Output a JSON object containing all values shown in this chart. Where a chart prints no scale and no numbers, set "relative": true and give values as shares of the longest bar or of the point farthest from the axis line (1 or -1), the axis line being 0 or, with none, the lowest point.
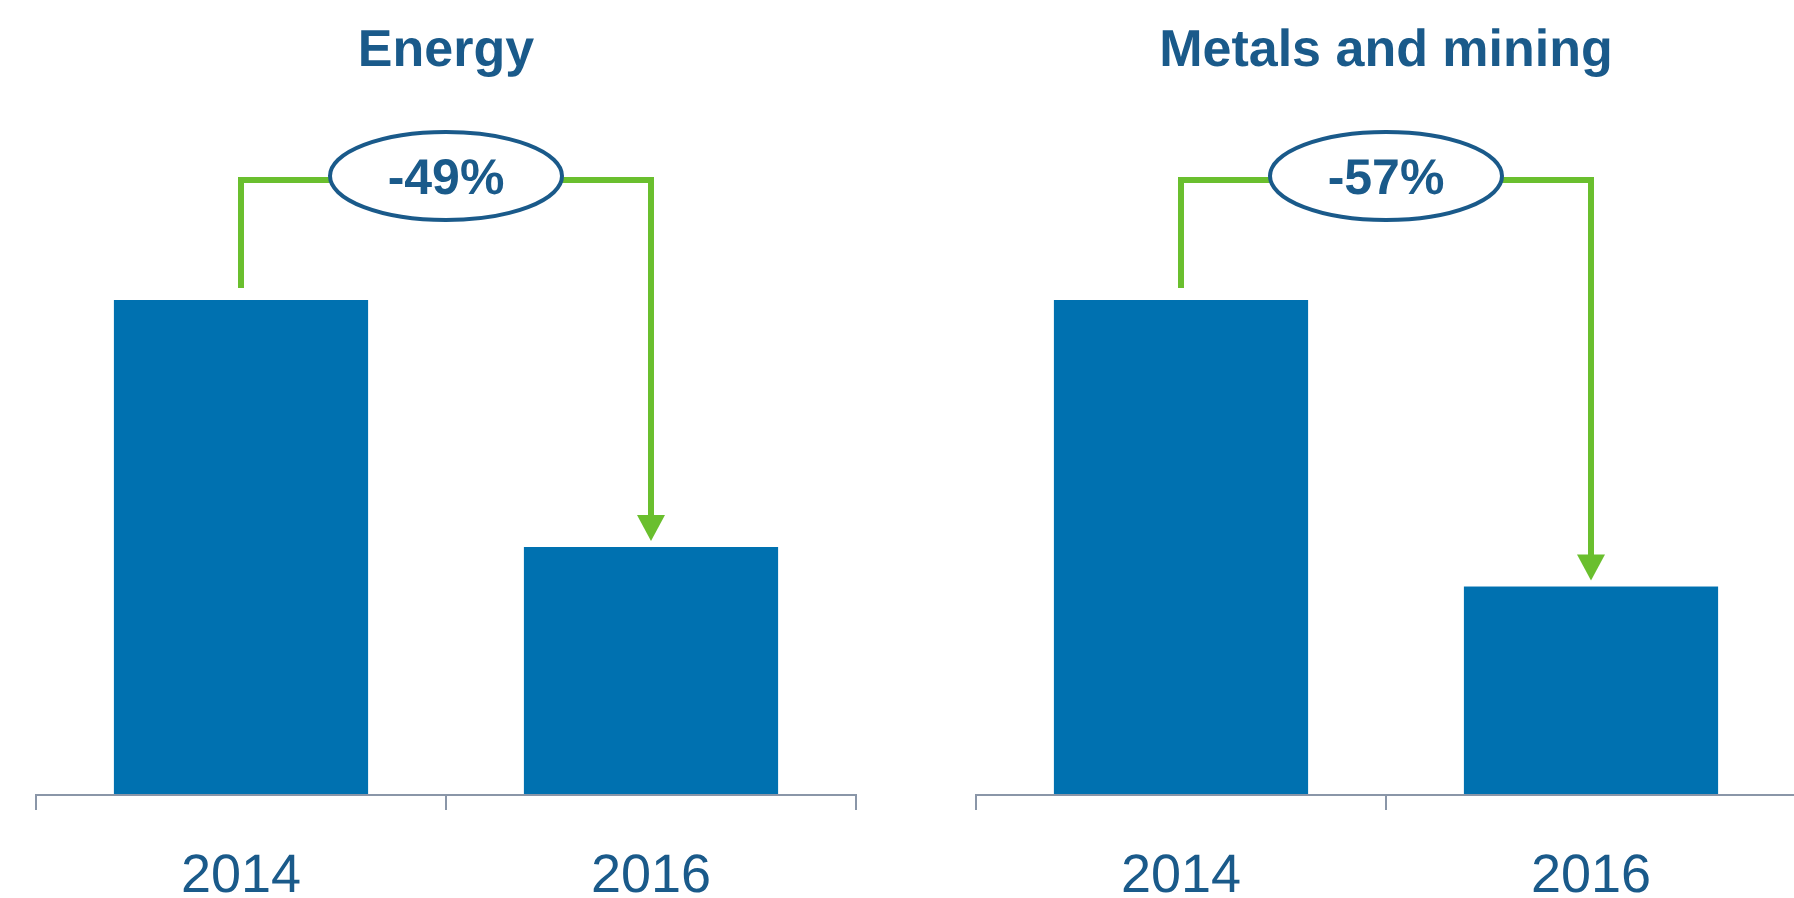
{
  "chart_data": [
    {
      "type": "bar",
      "title": "Energy",
      "categories": [
        "2014",
        "2016"
      ],
      "relative": true,
      "values": [
        1,
        0.5
      ],
      "color": "#0071b0",
      "annotations": [
        "-49%"
      ]
    },
    {
      "type": "bar",
      "title": "Metals and mining",
      "categories": [
        "2014",
        "2016"
      ],
      "relative": true,
      "values": [
        1,
        0.42
      ],
      "color": "#0071b0",
      "annotations": [
        "-57%"
      ]
    }
  ]
}
